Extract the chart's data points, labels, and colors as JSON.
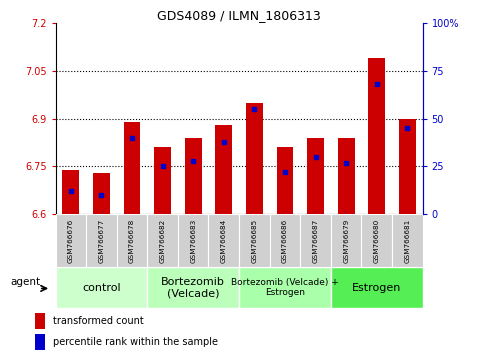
{
  "title": "GDS4089 / ILMN_1806313",
  "samples": [
    "GSM766676",
    "GSM766677",
    "GSM766678",
    "GSM766682",
    "GSM766683",
    "GSM766684",
    "GSM766685",
    "GSM766686",
    "GSM766687",
    "GSM766679",
    "GSM766680",
    "GSM766681"
  ],
  "transformed_count": [
    6.74,
    6.73,
    6.89,
    6.81,
    6.84,
    6.88,
    6.95,
    6.81,
    6.84,
    6.84,
    7.09,
    6.9
  ],
  "percentile_rank": [
    12,
    10,
    40,
    25,
    28,
    38,
    55,
    22,
    30,
    27,
    68,
    45
  ],
  "ymin": 6.6,
  "ymax": 7.2,
  "yticks_left": [
    6.6,
    6.75,
    6.9,
    7.05,
    7.2
  ],
  "ytick_labels_left": [
    "6.6",
    "6.75",
    "6.9",
    "7.05",
    "7.2"
  ],
  "yticks_right": [
    0,
    25,
    50,
    75,
    100
  ],
  "ytick_labels_right": [
    "0",
    "25",
    "50",
    "75",
    "100%"
  ],
  "bar_color": "#cc0000",
  "marker_color": "#0000cc",
  "bar_width": 0.55,
  "groups": [
    {
      "label": "control",
      "start": 0,
      "end": 3,
      "color": "#ccffcc",
      "fontsize": 8
    },
    {
      "label": "Bortezomib\n(Velcade)",
      "start": 3,
      "end": 6,
      "color": "#bbffbb",
      "fontsize": 8
    },
    {
      "label": "Bortezomib (Velcade) +\nEstrogen",
      "start": 6,
      "end": 9,
      "color": "#aaffaa",
      "fontsize": 6.5
    },
    {
      "label": "Estrogen",
      "start": 9,
      "end": 12,
      "color": "#55ee55",
      "fontsize": 8
    }
  ],
  "tick_label_color_left": "#cc0000",
  "tick_label_color_right": "#0000cc",
  "left_spine_color": "#000000",
  "right_spine_color": "#0000cc",
  "bottom_spine_color": "#000000",
  "grid_yticks": [
    6.75,
    6.9,
    7.05
  ],
  "label_box_color": "#d0d0d0",
  "agent_label": "agent",
  "legend_tc_color": "#cc0000",
  "legend_pr_color": "#0000cc",
  "legend_tc_label": "transformed count",
  "legend_pr_label": "percentile rank within the sample"
}
